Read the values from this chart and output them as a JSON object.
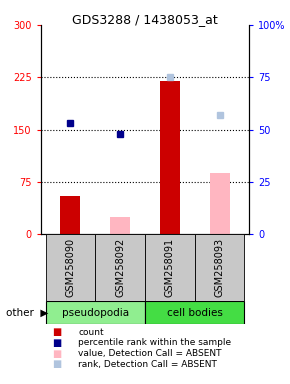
{
  "title": "GDS3288 / 1438053_at",
  "samples": [
    "GSM258090",
    "GSM258092",
    "GSM258091",
    "GSM258093"
  ],
  "ylim_left": [
    0,
    300
  ],
  "ylim_right": [
    0,
    100
  ],
  "yticks_left": [
    0,
    75,
    150,
    225,
    300
  ],
  "yticks_right": [
    0,
    25,
    50,
    75,
    100
  ],
  "ytick_labels_left": [
    "0",
    "75",
    "150",
    "225",
    "300"
  ],
  "ytick_labels_right": [
    "0",
    "25",
    "50",
    "75",
    "100%"
  ],
  "count_values": [
    55,
    25,
    220,
    88
  ],
  "count_absent": [
    false,
    true,
    false,
    true
  ],
  "rank_values": [
    53,
    48,
    75,
    57
  ],
  "rank_absent": [
    false,
    false,
    true,
    true
  ],
  "count_color_present": "#CC0000",
  "count_color_absent": "#FFB6C1",
  "rank_color_present": "#00008B",
  "rank_color_absent": "#B0C4DE",
  "dotted_lines": [
    75,
    150,
    225
  ],
  "legend_items": [
    {
      "color": "#CC0000",
      "label": "count"
    },
    {
      "color": "#00008B",
      "label": "percentile rank within the sample"
    },
    {
      "color": "#FFB6C1",
      "label": "value, Detection Call = ABSENT"
    },
    {
      "color": "#B0C4DE",
      "label": "rank, Detection Call = ABSENT"
    }
  ],
  "bar_width": 0.4,
  "pseudo_color": "#90EE90",
  "cell_color": "#44DD44",
  "label_bg": "#C8C8C8",
  "fig_width": 2.9,
  "fig_height": 3.84,
  "dpi": 100
}
